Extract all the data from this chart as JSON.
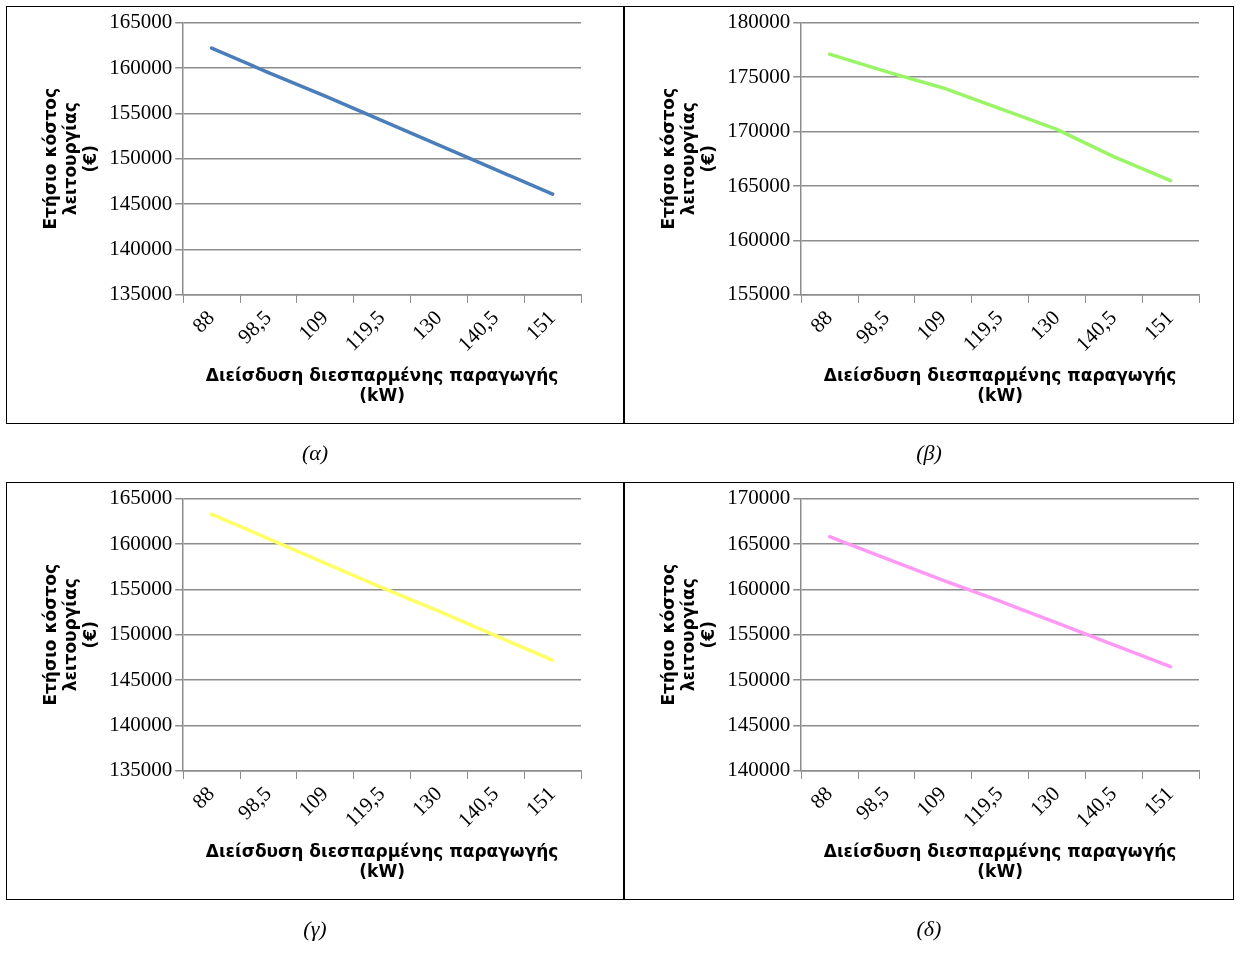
{
  "chart_data": [
    {
      "type": "line",
      "xlabel": "Διείσδυση διεσπαρμένης παραγωγής (kW)",
      "ylabel": "Ετήσιο κόστος λειτουργίας (€)",
      "categories": [
        "88",
        "98,5",
        "109",
        "119,5",
        "130",
        "140,5",
        "151"
      ],
      "series": [
        {
          "color": "#4a7ebb",
          "values": [
            162200,
            159500,
            156900,
            154200,
            151500,
            148800,
            146100
          ]
        }
      ],
      "ylim": [
        135000,
        165000
      ],
      "yticks": [
        135000,
        140000,
        145000,
        150000,
        155000,
        160000,
        165000
      ],
      "grid": "y",
      "legend": false,
      "marker": "none",
      "annotations": [
        "(α)"
      ]
    },
    {
      "type": "line",
      "xlabel": "Διείσδυση διεσπαρμένης παραγωγής (kW)",
      "ylabel": "Ετήσιο κόστος λειτουργίας (€)",
      "categories": [
        "88",
        "98,5",
        "109",
        "119,5",
        "130",
        "140,5",
        "151"
      ],
      "series": [
        {
          "color": "#99f566",
          "values": [
            177100,
            175500,
            174000,
            172100,
            170200,
            167700,
            165500
          ]
        }
      ],
      "ylim": [
        155000,
        180000
      ],
      "yticks": [
        155000,
        160000,
        165000,
        170000,
        175000,
        180000
      ],
      "grid": "y",
      "legend": false,
      "marker": "none",
      "annotations": [
        "(β)"
      ]
    },
    {
      "type": "line",
      "xlabel": "Διείσδυση διεσπαρμένης παραγωγής (kW)",
      "ylabel": "Ετήσιο κόστος λειτουργίας (€)",
      "categories": [
        "88",
        "98,5",
        "109",
        "119,5",
        "130",
        "140,5",
        "151"
      ],
      "series": [
        {
          "color": "#ffff66",
          "values": [
            163300,
            160600,
            157900,
            155200,
            152600,
            149900,
            147200
          ]
        }
      ],
      "ylim": [
        135000,
        165000
      ],
      "yticks": [
        135000,
        140000,
        145000,
        150000,
        155000,
        160000,
        165000
      ],
      "grid": "y",
      "legend": false,
      "marker": "none",
      "annotations": [
        "(γ)"
      ]
    },
    {
      "type": "line",
      "xlabel": "Διείσδυση διεσπαρμένης παραγωγής (kW)",
      "ylabel": "Ετήσιο κόστος λειτουργίας (€)",
      "categories": [
        "88",
        "98,5",
        "109",
        "119,5",
        "130",
        "140,5",
        "151"
      ],
      "series": [
        {
          "color": "#ff99f5",
          "values": [
            165800,
            163400,
            161000,
            158700,
            156300,
            153900,
            151500
          ]
        }
      ],
      "ylim": [
        140000,
        170000
      ],
      "yticks": [
        140000,
        145000,
        150000,
        155000,
        160000,
        165000,
        170000
      ],
      "grid": "y",
      "legend": false,
      "marker": "none",
      "annotations": [
        "(δ)"
      ]
    }
  ]
}
